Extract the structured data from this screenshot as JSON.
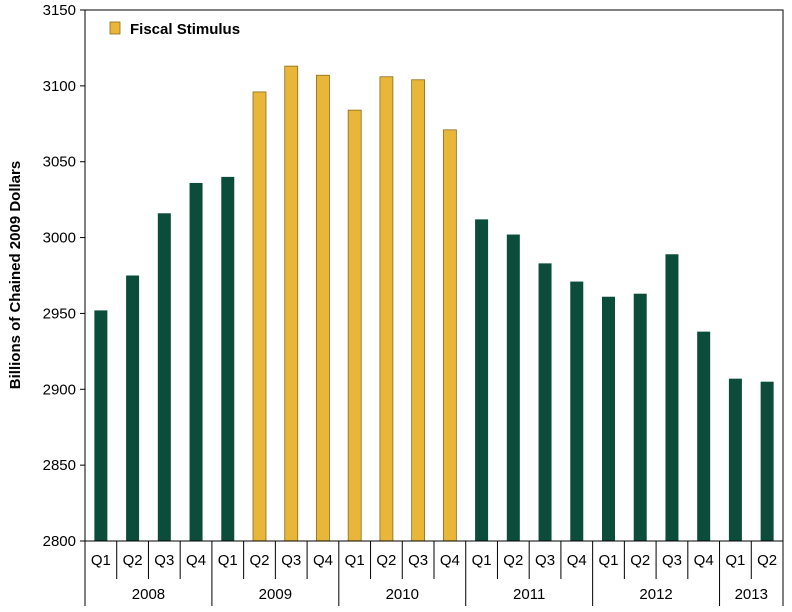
{
  "chart_data": {
    "type": "bar",
    "ylabel": "Billions of Chained 2009 Dollars",
    "ylim": [
      2800,
      3150
    ],
    "yticks": [
      "2800",
      "2850",
      "2900",
      "2950",
      "3000",
      "3050",
      "3100",
      "3150"
    ],
    "grid": false,
    "legend": {
      "position": "top-left",
      "entries": [
        {
          "label": "Fiscal Stimulus",
          "color": "#E8B73A"
        }
      ]
    },
    "colors": {
      "default": "#0B4D3A",
      "stimulus": "#E8B73A",
      "stimulus_border": "#8C6A1A"
    },
    "groups": [
      "2008",
      "2009",
      "2010",
      "2011",
      "2012",
      "2013"
    ],
    "bars": [
      {
        "quarter": "Q1",
        "year": "2008",
        "value": 2952,
        "stimulus": false
      },
      {
        "quarter": "Q2",
        "year": "2008",
        "value": 2975,
        "stimulus": false
      },
      {
        "quarter": "Q3",
        "year": "2008",
        "value": 3016,
        "stimulus": false
      },
      {
        "quarter": "Q4",
        "year": "2008",
        "value": 3036,
        "stimulus": false
      },
      {
        "quarter": "Q1",
        "year": "2009",
        "value": 3040,
        "stimulus": false
      },
      {
        "quarter": "Q2",
        "year": "2009",
        "value": 3096,
        "stimulus": true
      },
      {
        "quarter": "Q3",
        "year": "2009",
        "value": 3113,
        "stimulus": true
      },
      {
        "quarter": "Q4",
        "year": "2009",
        "value": 3107,
        "stimulus": true
      },
      {
        "quarter": "Q1",
        "year": "2010",
        "value": 3084,
        "stimulus": true
      },
      {
        "quarter": "Q2",
        "year": "2010",
        "value": 3106,
        "stimulus": true
      },
      {
        "quarter": "Q3",
        "year": "2010",
        "value": 3104,
        "stimulus": true
      },
      {
        "quarter": "Q4",
        "year": "2010",
        "value": 3071,
        "stimulus": true
      },
      {
        "quarter": "Q1",
        "year": "2011",
        "value": 3012,
        "stimulus": false
      },
      {
        "quarter": "Q2",
        "year": "2011",
        "value": 3002,
        "stimulus": false
      },
      {
        "quarter": "Q3",
        "year": "2011",
        "value": 2983,
        "stimulus": false
      },
      {
        "quarter": "Q4",
        "year": "2011",
        "value": 2971,
        "stimulus": false
      },
      {
        "quarter": "Q1",
        "year": "2012",
        "value": 2961,
        "stimulus": false
      },
      {
        "quarter": "Q2",
        "year": "2012",
        "value": 2963,
        "stimulus": false
      },
      {
        "quarter": "Q3",
        "year": "2012",
        "value": 2989,
        "stimulus": false
      },
      {
        "quarter": "Q4",
        "year": "2012",
        "value": 2938,
        "stimulus": false
      },
      {
        "quarter": "Q1",
        "year": "2013",
        "value": 2907,
        "stimulus": false
      },
      {
        "quarter": "Q2",
        "year": "2013",
        "value": 2905,
        "stimulus": false
      }
    ]
  }
}
